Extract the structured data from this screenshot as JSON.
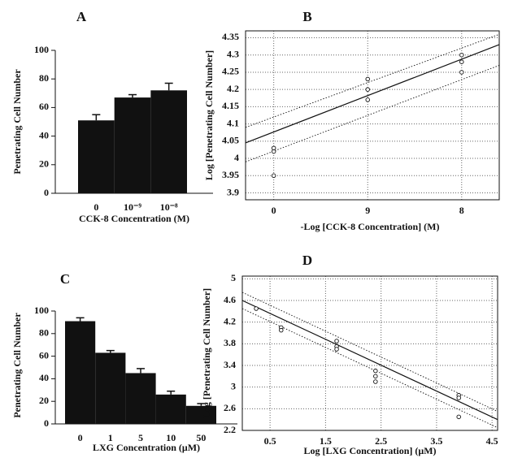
{
  "chart_data": [
    {
      "type": "bar",
      "title": "A",
      "ylabel": "Penetrating Cell Number",
      "xlabel": "CCK-8  Concentration (M)",
      "categories": [
        "0",
        "10⁻⁹",
        "10⁻⁸"
      ],
      "values": [
        51,
        67,
        72
      ],
      "errors": [
        4,
        2,
        5
      ],
      "color": "#111111",
      "ylim": [
        0,
        100
      ],
      "yticks": [
        0,
        20,
        40,
        60,
        80,
        100
      ]
    },
    {
      "type": "scatter",
      "title": "B",
      "ylabel": "Log [Penetrating Cell Number]",
      "xlabel": "-Log [CCK-8 Concentration]  (M)",
      "x": [
        0,
        0,
        0,
        1,
        1,
        1,
        2,
        2,
        2
      ],
      "y": [
        3.95,
        4.02,
        4.03,
        4.17,
        4.2,
        4.23,
        4.25,
        4.28,
        4.3
      ],
      "lines": [
        {
          "x": [
            -0.3,
            2.4
          ],
          "y": [
            4.045,
            4.33
          ],
          "style": "solid"
        },
        {
          "x": [
            -0.3,
            2.4
          ],
          "y": [
            4.09,
            4.36
          ],
          "style": "dotted"
        },
        {
          "x": [
            -0.3,
            2.4
          ],
          "y": [
            3.99,
            4.27
          ],
          "style": "dotted"
        }
      ],
      "xlim": [
        -0.3,
        2.4
      ],
      "xticks": [
        0,
        {
          "value": 1,
          "label": "9"
        },
        {
          "value": 2,
          "label": "8"
        }
      ],
      "ylim": [
        3.88,
        4.37
      ],
      "yticks": [
        3.9,
        3.95,
        4,
        4.05,
        4.1,
        4.15,
        4.2,
        4.25,
        4.3,
        4.35
      ],
      "grid": true
    },
    {
      "type": "bar",
      "title": "C",
      "ylabel": "Penetrating Cell Number",
      "xlabel": "LXG  Concentration  (μM)",
      "categories": [
        "0",
        "1",
        "5",
        "10",
        "50"
      ],
      "values": [
        91,
        63,
        45,
        26,
        16
      ],
      "errors": [
        3,
        2,
        4,
        3,
        2
      ],
      "color": "#111111",
      "ylim": [
        0,
        100
      ],
      "yticks": [
        0,
        20,
        40,
        60,
        80,
        100
      ]
    },
    {
      "type": "scatter",
      "title": "D",
      "ylabel": "Log [Penetrating Cell Number]",
      "xlabel": "Log [LXG Concentration]  (μM)",
      "x": [
        0.25,
        0.7,
        0.7,
        1.7,
        1.7,
        1.7,
        2.4,
        2.4,
        2.4,
        3.9,
        3.9,
        3.9
      ],
      "y": [
        4.45,
        4.1,
        4.05,
        3.75,
        3.85,
        3.7,
        3.3,
        3.2,
        3.1,
        2.85,
        2.8,
        2.45
      ],
      "lines": [
        {
          "x": [
            0,
            4.6
          ],
          "y": [
            4.6,
            2.4
          ],
          "style": "solid"
        },
        {
          "x": [
            0,
            4.6
          ],
          "y": [
            4.75,
            2.55
          ],
          "style": "dotted"
        },
        {
          "x": [
            0,
            4.6
          ],
          "y": [
            4.45,
            2.25
          ],
          "style": "dotted"
        }
      ],
      "xlim": [
        0,
        4.6
      ],
      "xticks": [
        0.5,
        1.5,
        2.5,
        3.5,
        4.5
      ],
      "ylim": [
        2.2,
        5.05
      ],
      "yticks": [
        2.2,
        2.6,
        3,
        3.4,
        3.8,
        4.2,
        4.6,
        5
      ],
      "grid": true
    }
  ]
}
